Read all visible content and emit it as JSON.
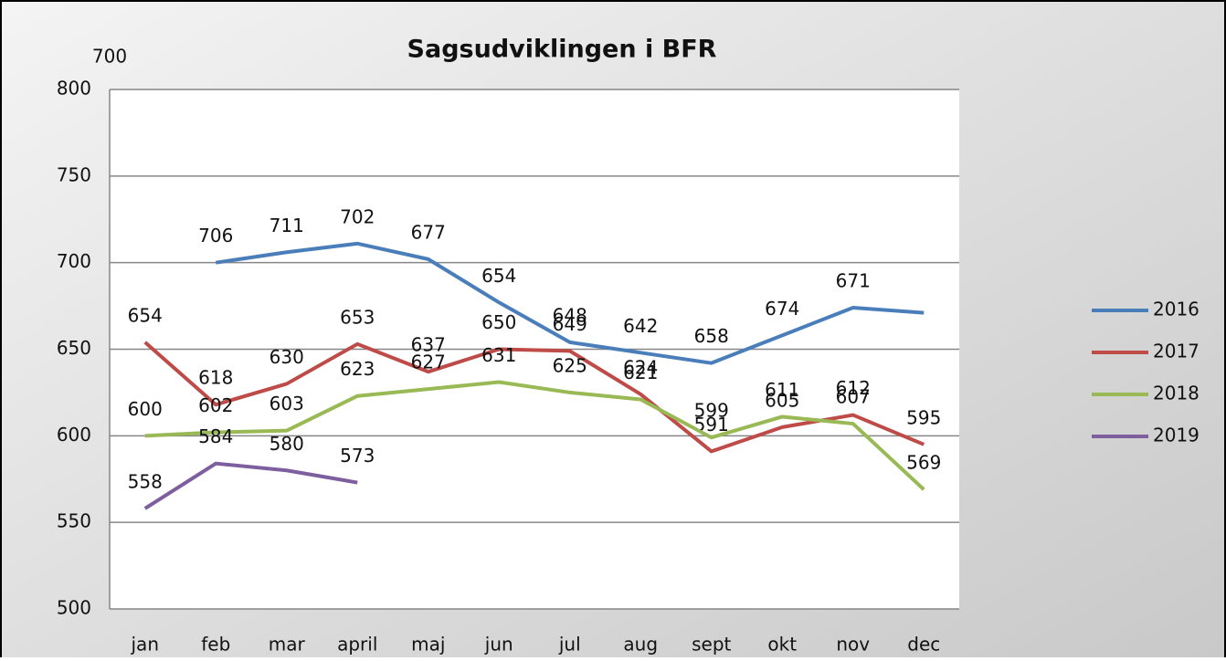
{
  "chart_data": {
    "type": "line",
    "title": "Sagsudviklingen i BFR",
    "categories": [
      "jan",
      "feb",
      "mar",
      "april",
      "maj",
      "jun",
      "jul",
      "aug",
      "sept",
      "okt",
      "nov",
      "dec"
    ],
    "series": [
      {
        "name": "2016",
        "color": "#4a7ebb",
        "values": [
          null,
          700,
          706,
          711,
          702,
          677,
          654,
          648,
          642,
          658,
          674,
          671
        ]
      },
      {
        "name": "2017",
        "color": "#be4b48",
        "values": [
          654,
          618,
          630,
          653,
          637,
          650,
          649,
          624,
          591,
          605,
          612,
          595
        ]
      },
      {
        "name": "2018",
        "color": "#98b954",
        "values": [
          600,
          602,
          603,
          623,
          627,
          631,
          625,
          621,
          599,
          611,
          607,
          569
        ]
      },
      {
        "name": "2019",
        "color": "#7d5fa0",
        "values": [
          558,
          584,
          580,
          573,
          null,
          null,
          null,
          null,
          null,
          null,
          null,
          null
        ]
      }
    ],
    "ylim": [
      500,
      800
    ],
    "yticks": [
      500,
      550,
      600,
      650,
      700,
      750,
      800
    ],
    "grid": true,
    "legend": "right"
  }
}
